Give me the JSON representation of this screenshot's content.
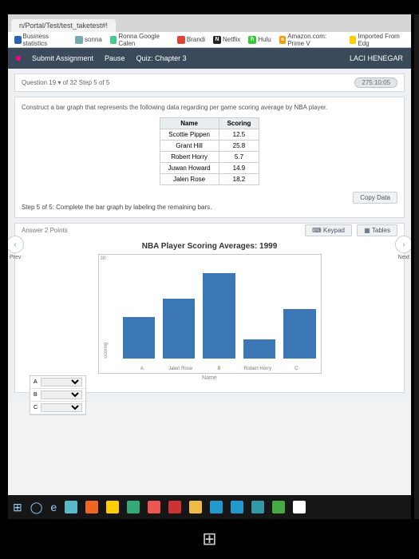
{
  "browser": {
    "tab_title": "n/Portal/Test/test_taketest#!"
  },
  "bookmarks": [
    {
      "label": "Business statistics",
      "favcolor": "#2a62b5"
    },
    {
      "label": "sonna",
      "favcolor": "#7aa"
    },
    {
      "label": "Ronna Google Calen",
      "favcolor": "#4c8"
    },
    {
      "label": "Brandi",
      "favcolor": "#d43"
    },
    {
      "label": "Netflix",
      "favcolor": "#222",
      "prefix": "N"
    },
    {
      "label": "Hulu",
      "favcolor": "#3c3",
      "prefix": "h"
    },
    {
      "label": "Amazon.com: Prime V",
      "favcolor": "#f90",
      "prefix": "a"
    },
    {
      "label": "Imported From Edg",
      "favcolor": "#fc0"
    }
  ],
  "assignment_bar": {
    "left_items": [
      "Submit Assignment",
      "Pause",
      "Quiz: Chapter 3"
    ],
    "user_name": "LACI HENEGAR"
  },
  "question_bar": {
    "left": "Question 19 ▾   of 32 Step 5 of 5",
    "timer": "275:10:05"
  },
  "question": {
    "instruction": "Construct a bar graph that represents the following data regarding per game scoring average by NBA player.",
    "table": {
      "columns": [
        "Name",
        "Scoring"
      ],
      "rows": [
        [
          "Scottie Pippen",
          "12.5"
        ],
        [
          "Grant Hill",
          "25.8"
        ],
        [
          "Robert Horry",
          "5.7"
        ],
        [
          "Juwan Howard",
          "14.9"
        ],
        [
          "Jalen Rose",
          "18.2"
        ]
      ]
    },
    "copy_btn": "Copy Data",
    "step_line": "Step 5 of 5: Complete the bar graph by labeling the remaining bars."
  },
  "answer": {
    "header_label": "Answer   2 Points",
    "keypad_btn": "Keypad",
    "tables_btn": "Tables"
  },
  "chart": {
    "type": "bar",
    "title": "NBA Player Scoring Averages: 1999",
    "y_label": "Scoring",
    "x_label": "Name",
    "x_ticks": [
      "A",
      "Jalen Rose",
      "B",
      "Robert Horry",
      "C"
    ],
    "values": [
      12.5,
      18.2,
      25.8,
      5.7,
      14.9
    ],
    "ylim": [
      0,
      30
    ],
    "bar_color": "#3b76b5",
    "border_color": "#c8c8c8",
    "background_color": "#ffffff"
  },
  "dropdowns": {
    "rows": [
      "A",
      "B",
      "C"
    ]
  },
  "nav": {
    "prev": "Prev",
    "next": "Next"
  },
  "taskbar_colors": [
    "#5bc",
    "#e62",
    "#fc0",
    "#3a7",
    "#e55",
    "#c33",
    "#eb4",
    "#29c",
    "#29c",
    "#39a",
    "#4a4",
    "#fff"
  ]
}
